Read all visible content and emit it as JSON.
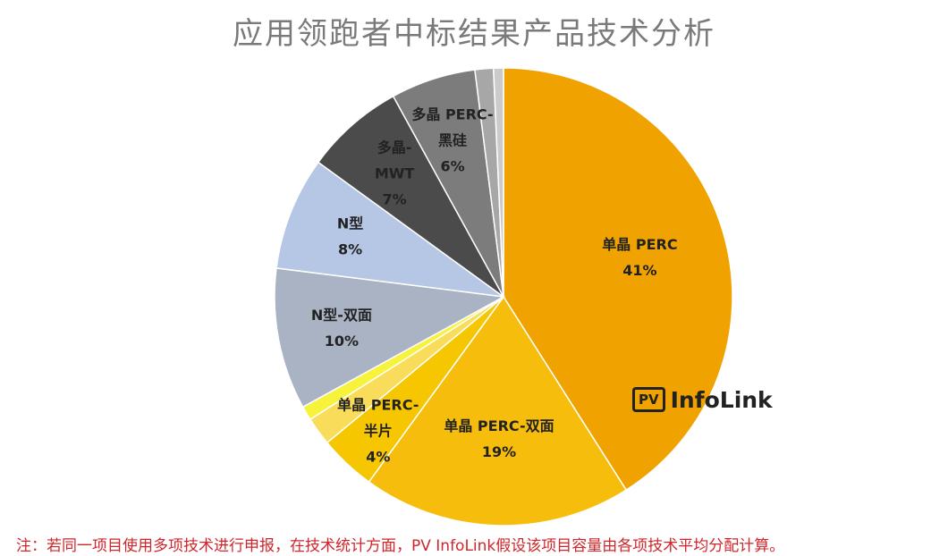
{
  "chart_data": {
    "type": "pie",
    "title": "应用领跑者中标结果产品技术分析",
    "slices": [
      {
        "label_lines": [
          "单晶 PERC",
          "41%"
        ],
        "value": 41,
        "color": "#f0a300"
      },
      {
        "label_lines": [
          "单晶 PERC-双面",
          "19%"
        ],
        "value": 19,
        "color": "#f7bd0c"
      },
      {
        "label_lines": [
          "单晶 PERC-",
          "半片",
          "4%"
        ],
        "value": 4,
        "color": "#f6c700"
      },
      {
        "label_lines": [],
        "value": 2,
        "color": "#f9dc5a"
      },
      {
        "label_lines": [],
        "value": 1,
        "color": "#f7f23a"
      },
      {
        "label_lines": [
          "N型-双面",
          "10%"
        ],
        "value": 10,
        "color": "#a9b3c3"
      },
      {
        "label_lines": [
          "N型",
          "8%"
        ],
        "value": 8,
        "color": "#b6c7e6"
      },
      {
        "label_lines": [
          "多晶-",
          "MWT",
          "7%"
        ],
        "value": 7,
        "color": "#4b4b4b"
      },
      {
        "label_lines": [
          "多晶 PERC-",
          "黑硅",
          "6%"
        ],
        "value": 6,
        "color": "#7c7c7c"
      },
      {
        "label_lines": [],
        "value": 1.3,
        "color": "#a7a7a7"
      },
      {
        "label_lines": [],
        "value": 0.7,
        "color": "#cbcbcb"
      }
    ]
  },
  "logo": {
    "box_text": "PV",
    "brand_text": "InfoLink"
  },
  "footnote": "注：若同一项目使用多项技术进行申报，在技术统计方面，PV InfoLink假设该项目容量由各项技术平均分配计算。"
}
